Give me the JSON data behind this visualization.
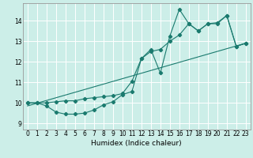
{
  "xlabel": "Humidex (Indice chaleur)",
  "bg_color": "#cceee8",
  "line_color": "#1a7a6e",
  "grid_color": "#ffffff",
  "xlim": [
    -0.5,
    23.5
  ],
  "ylim": [
    8.7,
    14.85
  ],
  "xticks": [
    0,
    1,
    2,
    3,
    4,
    5,
    6,
    7,
    8,
    9,
    10,
    11,
    12,
    13,
    14,
    15,
    16,
    17,
    18,
    19,
    20,
    21,
    22,
    23
  ],
  "yticks": [
    9,
    10,
    11,
    12,
    13,
    14
  ],
  "series1_x": [
    0,
    1,
    2,
    3,
    4,
    5,
    6,
    7,
    8,
    9,
    10,
    11,
    12,
    13,
    14,
    15,
    16,
    17,
    18,
    19,
    20,
    21,
    22,
    23
  ],
  "series1_y": [
    10.0,
    10.0,
    9.85,
    9.55,
    9.45,
    9.45,
    9.5,
    9.65,
    9.9,
    10.05,
    10.4,
    10.55,
    12.15,
    12.6,
    11.45,
    13.25,
    14.55,
    13.85,
    13.5,
    13.85,
    13.9,
    14.25,
    12.75,
    12.9
  ],
  "series2_x": [
    0,
    1,
    2,
    3,
    4,
    5,
    6,
    7,
    8,
    9,
    10,
    11,
    12,
    13,
    14,
    15,
    16,
    17,
    18,
    19,
    20,
    21,
    22,
    23
  ],
  "series2_y": [
    10.0,
    10.0,
    10.0,
    10.05,
    10.1,
    10.1,
    10.2,
    10.25,
    10.3,
    10.35,
    10.45,
    11.05,
    12.15,
    12.5,
    12.6,
    13.0,
    13.3,
    13.85,
    13.5,
    13.85,
    13.85,
    14.25,
    12.75,
    12.9
  ],
  "series3_x": [
    0,
    23
  ],
  "series3_y": [
    9.85,
    12.9
  ]
}
